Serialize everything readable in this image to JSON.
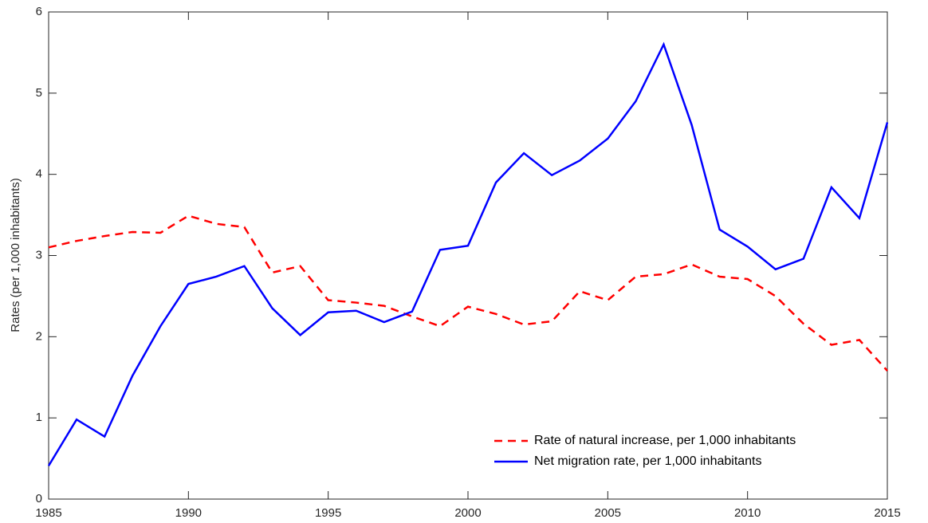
{
  "chart_data": {
    "type": "line",
    "y_label": "Rates (per 1,000 inhabitants)",
    "x": [
      1985,
      1986,
      1987,
      1988,
      1989,
      1990,
      1991,
      1992,
      1993,
      1994,
      1995,
      1996,
      1997,
      1998,
      1999,
      2000,
      2001,
      2002,
      2003,
      2004,
      2005,
      2006,
      2007,
      2008,
      2009,
      2010,
      2011,
      2012,
      2013,
      2014,
      2015
    ],
    "series": [
      {
        "name": "Rate of natural increase, per 1,000 inhabitants",
        "color": "#ff0000",
        "line_style": "dashed",
        "values": [
          3.1,
          3.18,
          3.24,
          3.29,
          3.28,
          3.49,
          3.39,
          3.35,
          2.79,
          2.87,
          2.45,
          2.42,
          2.38,
          2.25,
          2.13,
          2.37,
          2.28,
          2.15,
          2.19,
          2.56,
          2.45,
          2.74,
          2.77,
          2.89,
          2.74,
          2.71,
          2.5,
          2.16,
          1.9,
          1.96,
          1.58
        ]
      },
      {
        "name": "Net migration rate, per 1,000 inhabitants",
        "color": "#0000ff",
        "line_style": "solid",
        "values": [
          0.41,
          0.98,
          0.77,
          1.52,
          2.13,
          2.65,
          2.74,
          2.87,
          2.35,
          2.02,
          2.3,
          2.32,
          2.18,
          2.31,
          3.07,
          3.12,
          3.9,
          4.26,
          3.99,
          4.17,
          4.44,
          4.9,
          5.6,
          4.61,
          3.32,
          3.11,
          2.83,
          2.96,
          3.84,
          3.46,
          4.64
        ]
      }
    ],
    "xlim": [
      1985,
      2015
    ],
    "xticks": [
      1985,
      1990,
      1995,
      2000,
      2005,
      2010,
      2015
    ],
    "ylim": [
      0,
      6
    ],
    "yticks": [
      0,
      1,
      2,
      3,
      4,
      5,
      6
    ],
    "grid": false,
    "legend_position": "lower right"
  }
}
